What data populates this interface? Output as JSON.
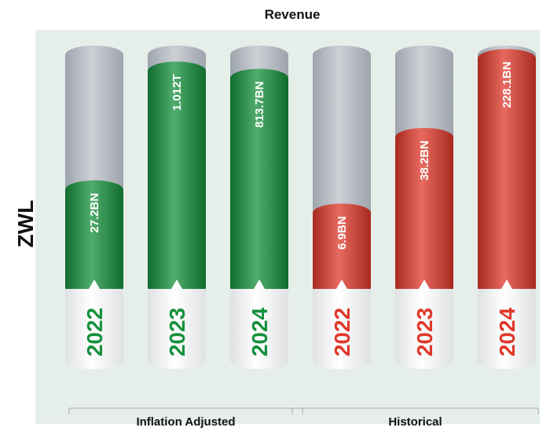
{
  "chart_data": {
    "type": "bar",
    "title": "Revenue",
    "y_label": "ZWL",
    "log_scale": true,
    "categories": [
      "2022",
      "2023",
      "2024"
    ],
    "series": [
      {
        "name": "Inflation Adjusted",
        "color": "#16913c",
        "values": [
          27200000000,
          1012000000000,
          813700000000
        ],
        "value_labels": [
          "27.2BN",
          "1.012T",
          "813.7BN"
        ],
        "ylim": [
          1000000000,
          1500000000000
        ]
      },
      {
        "name": "Historical",
        "color": "#e0382a",
        "values": [
          6900000000,
          38200000000,
          228100000000
        ],
        "value_labels": [
          "6.9BN",
          "38.2BN",
          "228.1BN"
        ],
        "ylim": [
          1000000000,
          230000000000
        ]
      }
    ]
  }
}
